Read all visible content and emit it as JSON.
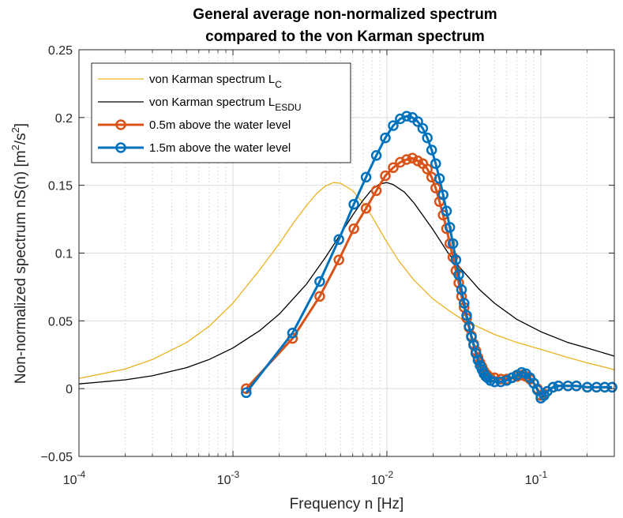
{
  "chart_data": {
    "type": "line",
    "title_line1": "General average non-normalized spectrum",
    "title_line2": "compared to the von Karman spectrum",
    "xlabel": "Frequency n [Hz]",
    "ylabel": "Non-normalized spectrum nS(n) [m",
    "ylabel_sup1": "2",
    "ylabel_mid": "/s",
    "ylabel_sup2": "2",
    "ylabel_end": "]",
    "xscale": "log",
    "xlim": [
      0.0001,
      0.3
    ],
    "ylim": [
      -0.05,
      0.25
    ],
    "grid": true,
    "legend_location": "top-left",
    "x_ticks": [
      {
        "base": "10",
        "exp": "-4",
        "value": 0.0001
      },
      {
        "base": "10",
        "exp": "-3",
        "value": 0.001
      },
      {
        "base": "10",
        "exp": "-2",
        "value": 0.01
      },
      {
        "base": "10",
        "exp": "-1",
        "value": 0.1
      }
    ],
    "y_ticks": [
      {
        "label": "−0.05",
        "value": -0.05
      },
      {
        "label": "0",
        "value": 0
      },
      {
        "label": "0.05",
        "value": 0.05
      },
      {
        "label": "0.1",
        "value": 0.1
      },
      {
        "label": "0.15",
        "value": 0.15
      },
      {
        "label": "0.2",
        "value": 0.2
      },
      {
        "label": "0.25",
        "value": 0.25
      }
    ],
    "series": [
      {
        "name": "von Karman spectrum L",
        "subscript": "C",
        "color": "#EDB120",
        "style": "line",
        "x": [
          0.0001,
          0.0002,
          0.0003,
          0.0005,
          0.0007,
          0.001,
          0.0015,
          0.002,
          0.0025,
          0.003,
          0.0035,
          0.004,
          0.0045,
          0.005,
          0.006,
          0.007,
          0.008,
          0.01,
          0.012,
          0.015,
          0.02,
          0.025,
          0.03,
          0.04,
          0.05,
          0.07,
          0.1,
          0.15,
          0.2,
          0.3
        ],
        "y": [
          0.0075,
          0.0145,
          0.0215,
          0.034,
          0.046,
          0.063,
          0.088,
          0.107,
          0.123,
          0.135,
          0.144,
          0.1495,
          0.152,
          0.1515,
          0.146,
          0.137,
          0.127,
          0.108,
          0.094,
          0.08,
          0.066,
          0.058,
          0.052,
          0.045,
          0.04,
          0.034,
          0.029,
          0.023,
          0.019,
          0.014
        ]
      },
      {
        "name": "von Karman spectrum L",
        "subscript": "ESDU",
        "color": "#000000",
        "style": "line",
        "x": [
          0.0001,
          0.0002,
          0.0003,
          0.0005,
          0.0007,
          0.001,
          0.0015,
          0.002,
          0.003,
          0.004,
          0.005,
          0.006,
          0.007,
          0.008,
          0.009,
          0.01,
          0.011,
          0.013,
          0.015,
          0.02,
          0.025,
          0.03,
          0.04,
          0.05,
          0.07,
          0.1,
          0.15,
          0.2,
          0.3
        ],
        "y": [
          0.0035,
          0.0065,
          0.0095,
          0.0155,
          0.0215,
          0.03,
          0.043,
          0.055,
          0.077,
          0.097,
          0.114,
          0.128,
          0.139,
          0.147,
          0.151,
          0.152,
          0.1505,
          0.145,
          0.137,
          0.117,
          0.1,
          0.089,
          0.073,
          0.063,
          0.051,
          0.042,
          0.034,
          0.03,
          0.024
        ]
      },
      {
        "name": "0.5m above the water level",
        "color": "#D95319",
        "style": "line-marker",
        "x": [
          0.00122,
          0.00244,
          0.00366,
          0.00488,
          0.0061,
          0.00732,
          0.00854,
          0.00977,
          0.01099,
          0.01221,
          0.01343,
          0.01465,
          0.01587,
          0.01709,
          0.01831,
          0.01953,
          0.02075,
          0.02197,
          0.02319,
          0.02441,
          0.02563,
          0.02686,
          0.02808,
          0.0293,
          0.03052,
          0.03174,
          0.03296,
          0.03418,
          0.0354,
          0.03662,
          0.03784,
          0.03906,
          0.04028,
          0.0415,
          0.04272,
          0.04395,
          0.045,
          0.047,
          0.05,
          0.055,
          0.06,
          0.065,
          0.07,
          0.075,
          0.08,
          0.085,
          0.09,
          0.095,
          0.1,
          0.105,
          0.11,
          0.12,
          0.13,
          0.15,
          0.17,
          0.2,
          0.23,
          0.26,
          0.29
        ],
        "y": [
          0.0,
          0.037,
          0.068,
          0.095,
          0.118,
          0.133,
          0.146,
          0.157,
          0.163,
          0.167,
          0.169,
          0.17,
          0.168,
          0.166,
          0.162,
          0.156,
          0.148,
          0.138,
          0.128,
          0.118,
          0.107,
          0.097,
          0.087,
          0.078,
          0.068,
          0.06,
          0.052,
          0.045,
          0.039,
          0.033,
          0.028,
          0.023,
          0.019,
          0.016,
          0.013,
          0.011,
          0.01,
          0.008,
          0.008,
          0.007,
          0.007,
          0.008,
          0.009,
          0.01,
          0.009,
          0.007,
          0.004,
          0.0,
          -0.005,
          -0.004,
          -0.002,
          0.001,
          0.002,
          0.002,
          0.002,
          0.001,
          0.001,
          0.001,
          0.001
        ]
      },
      {
        "name": "1.5m above the water level",
        "color": "#0072BD",
        "style": "line-marker",
        "x": [
          0.00122,
          0.00244,
          0.00366,
          0.00488,
          0.0061,
          0.00732,
          0.00854,
          0.00977,
          0.01099,
          0.01221,
          0.01343,
          0.01465,
          0.01587,
          0.01709,
          0.01831,
          0.01953,
          0.02075,
          0.02197,
          0.02319,
          0.02441,
          0.02563,
          0.02686,
          0.02808,
          0.0293,
          0.03052,
          0.03174,
          0.03296,
          0.03418,
          0.0354,
          0.03662,
          0.03784,
          0.03906,
          0.04028,
          0.0415,
          0.04272,
          0.04395,
          0.045,
          0.047,
          0.05,
          0.055,
          0.06,
          0.065,
          0.07,
          0.075,
          0.08,
          0.085,
          0.09,
          0.095,
          0.1,
          0.105,
          0.11,
          0.12,
          0.13,
          0.15,
          0.17,
          0.2,
          0.23,
          0.26,
          0.29
        ],
        "y": [
          -0.003,
          0.041,
          0.079,
          0.11,
          0.136,
          0.156,
          0.172,
          0.185,
          0.194,
          0.199,
          0.201,
          0.2,
          0.197,
          0.192,
          0.185,
          0.176,
          0.166,
          0.155,
          0.143,
          0.131,
          0.119,
          0.107,
          0.095,
          0.084,
          0.073,
          0.063,
          0.054,
          0.046,
          0.038,
          0.032,
          0.026,
          0.021,
          0.017,
          0.014,
          0.011,
          0.009,
          0.008,
          0.006,
          0.005,
          0.005,
          0.006,
          0.008,
          0.01,
          0.012,
          0.011,
          0.008,
          0.004,
          -0.001,
          -0.007,
          -0.005,
          -0.002,
          0.001,
          0.002,
          0.002,
          0.002,
          0.001,
          0.001,
          0.001,
          0.001
        ]
      }
    ]
  }
}
